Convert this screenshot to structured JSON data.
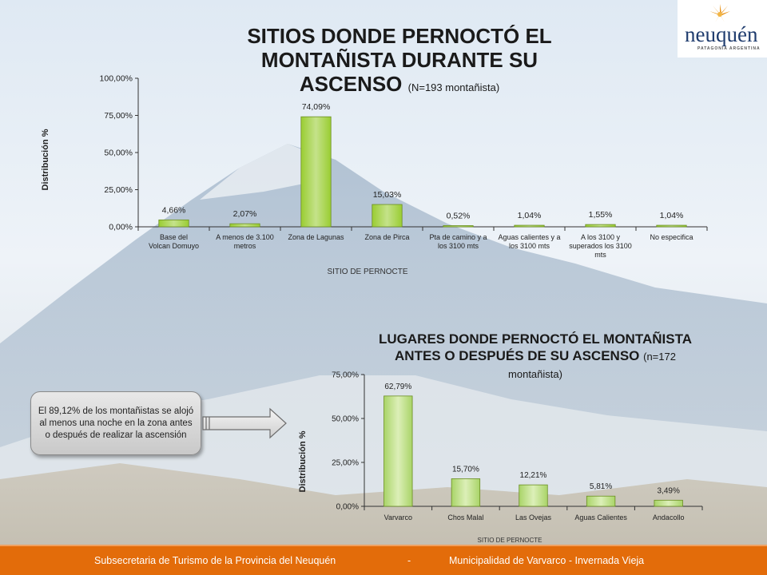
{
  "colors": {
    "bar_fill": "#9acd32",
    "bar_fill_light": "#c4e28a",
    "footer": "#e36c0a",
    "logo": "#1f3c6e"
  },
  "logo": {
    "word": "neuquén",
    "tagline": "PATAGONIA ARGENTINA"
  },
  "chart_data": [
    {
      "type": "bar",
      "title": "SITIOS DONDE PERNOCTÓ EL MONTAÑISTA DURANTE SU ASCENSO",
      "subtitle": "(N=193 montañista)",
      "xlabel": "SITIO DE PERNOCTE",
      "ylabel": "Distribución %",
      "ylim": [
        0,
        100
      ],
      "yticks": [
        "0,00%",
        "25,00%",
        "50,00%",
        "75,00%",
        "100,00%"
      ],
      "ytick_values": [
        0,
        25,
        50,
        75,
        100
      ],
      "grid": false,
      "categories": [
        [
          "Base del",
          "Volcan Domuyo"
        ],
        [
          "A menos de 3.100",
          "metros"
        ],
        [
          "Zona de Lagunas"
        ],
        [
          "Zona de Pirca"
        ],
        [
          "Pta de camino y a",
          "los 3100 mts"
        ],
        [
          "Aguas calientes y a",
          "los 3100 mts"
        ],
        [
          "A los 3100 y",
          "superados los 3100",
          "mts"
        ],
        [
          "No especifica"
        ]
      ],
      "values": [
        4.66,
        2.07,
        74.09,
        15.03,
        0.52,
        1.04,
        1.55,
        1.04
      ],
      "data_labels": [
        "4,66%",
        "2,07%",
        "74,09%",
        "15,03%",
        "0,52%",
        "1,04%",
        "1,55%",
        "1,04%"
      ]
    },
    {
      "type": "bar",
      "title": "LUGARES DONDE PERNOCTÓ EL MONTAÑISTA ANTES O DESPUÉS DE SU ASCENSO",
      "subtitle": "(n=172 montañista)",
      "xlabel": "SITIO DE PERNOCTE",
      "ylabel": "Distribución %",
      "ylim": [
        0,
        75
      ],
      "yticks": [
        "0,00%",
        "25,00%",
        "50,00%",
        "75,00%"
      ],
      "ytick_values": [
        0,
        25,
        50,
        75
      ],
      "grid": false,
      "categories": [
        [
          "Varvarco"
        ],
        [
          "Chos Malal"
        ],
        [
          "Las Ovejas"
        ],
        [
          "Aguas Calientes"
        ],
        [
          "Andacollo"
        ]
      ],
      "values": [
        62.79,
        15.7,
        12.21,
        5.81,
        3.49
      ],
      "data_labels": [
        "62,79%",
        "15,70%",
        "12,21%",
        "5,81%",
        "3,49%"
      ]
    }
  ],
  "callout": {
    "text": "El 89,12% de los montañistas se alojó al menos una noche en la zona antes o después de realizar la ascensión"
  },
  "footer": {
    "left": "Subsecretaria de Turismo de la Provincia del Neuquén",
    "separator": "-",
    "right": "Municipalidad de Varvarco - Invernada Vieja"
  }
}
